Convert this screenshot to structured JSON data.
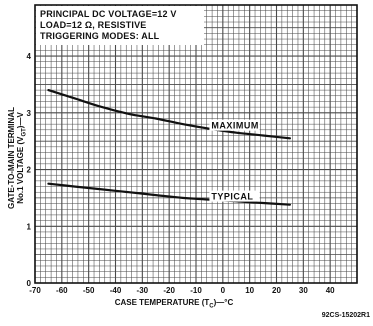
{
  "chart_data": {
    "type": "line",
    "conditions": [
      "PRINCIPAL DC VOLTAGE=12 V",
      "LOAD=12 Ω, RESISTIVE",
      "TRIGGERING MODES: ALL"
    ],
    "xlabel": "CASE TEMPERATURE (T",
    "xlabel_sub": "C",
    "xlabel_tail": ")—°C",
    "ylabel_line1": "GATE-TO-MAIN TERMINAL",
    "ylabel_line2": "No.1 VOLTAGE (V",
    "ylabel_sub": "GT",
    "ylabel_tail": ")—V",
    "x_ticks": [
      "-70",
      "-60",
      "-50",
      "-40",
      "-30",
      "-20",
      "-10",
      "0",
      "10",
      "20",
      "30",
      "40"
    ],
    "y_ticks": [
      "0",
      "1",
      "2",
      "3",
      "4"
    ],
    "xlim": [
      -70,
      50
    ],
    "ylim": [
      0,
      4.9
    ],
    "grid": true,
    "series": [
      {
        "name": "MAXIMUM",
        "x": [
          -65,
          -55,
          -45,
          -35,
          -25,
          -15,
          -5,
          5,
          15,
          25
        ],
        "y": [
          3.4,
          3.25,
          3.1,
          2.98,
          2.9,
          2.8,
          2.72,
          2.65,
          2.6,
          2.55
        ]
      },
      {
        "name": "TYPICAL",
        "x": [
          -65,
          -55,
          -45,
          -35,
          -25,
          -15,
          -5,
          5,
          15,
          25
        ],
        "y": [
          1.75,
          1.7,
          1.65,
          1.6,
          1.55,
          1.5,
          1.47,
          1.44,
          1.41,
          1.38
        ]
      }
    ],
    "figure_code": "92CS-15202R1",
    "colors": {
      "ink": "#111111",
      "grid": "#4a4a4a",
      "paper": "#ffffff"
    }
  }
}
